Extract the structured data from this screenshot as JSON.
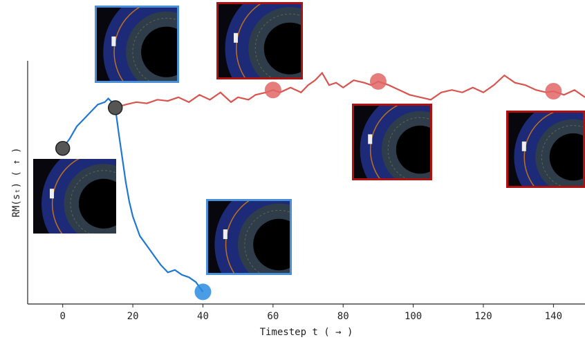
{
  "chart_data": {
    "type": "line",
    "xlabel": "Timestep t ( → )",
    "ylabel": "RM(sₜ) ( ↑ )",
    "xlim": [
      -10,
      149
    ],
    "ylim": [
      0,
      100
    ],
    "xticks": [
      0,
      20,
      40,
      60,
      80,
      100,
      120,
      140
    ],
    "series": [
      {
        "color": "#1f77d4",
        "x": [
          0,
          2,
          4,
          6,
          8,
          10,
          12,
          13,
          14,
          15,
          16,
          17,
          18,
          19,
          20,
          22,
          24,
          26,
          28,
          30,
          32,
          34,
          36,
          38,
          40
        ],
        "values": [
          64,
          68,
          73,
          76,
          79,
          82,
          83,
          84.5,
          83,
          80.7,
          70,
          60,
          50,
          42,
          36,
          28,
          24,
          20,
          16,
          13,
          14,
          12,
          11,
          9,
          5
        ]
      },
      {
        "color": "#d9534f",
        "x": [
          15,
          18,
          21,
          24,
          27,
          30,
          33,
          36,
          39,
          42,
          45,
          48,
          50,
          53,
          55,
          58,
          60,
          62,
          65,
          68,
          70,
          72,
          74,
          76,
          78,
          80,
          83,
          86,
          88,
          90,
          93,
          96,
          99,
          102,
          105,
          108,
          111,
          114,
          117,
          120,
          123,
          126,
          129,
          132,
          135,
          138,
          140,
          143,
          146,
          149
        ],
        "values": [
          80.7,
          82,
          83,
          82.5,
          84,
          83.5,
          85,
          83,
          86,
          84,
          87,
          83,
          85,
          84,
          86,
          87,
          88,
          87,
          89,
          87,
          90,
          92,
          95,
          90,
          91,
          89,
          92,
          91,
          90,
          91.5,
          90,
          88,
          86,
          85,
          84,
          87,
          88,
          87,
          89,
          87,
          90,
          94,
          91,
          90,
          88,
          87,
          87.5,
          86,
          88,
          85
        ]
      }
    ],
    "points": [
      {
        "x": 0,
        "y": 64,
        "color": "#555555"
      },
      {
        "x": 15,
        "y": 80.7,
        "color": "#555555"
      },
      {
        "x": 40,
        "y": 5,
        "color": "#2a8be0"
      },
      {
        "x": 60,
        "y": 88,
        "color": "#e06666"
      },
      {
        "x": 90,
        "y": 91.5,
        "color": "#e06666"
      },
      {
        "x": 140,
        "y": 87.5,
        "color": "#e06666"
      }
    ]
  }
}
